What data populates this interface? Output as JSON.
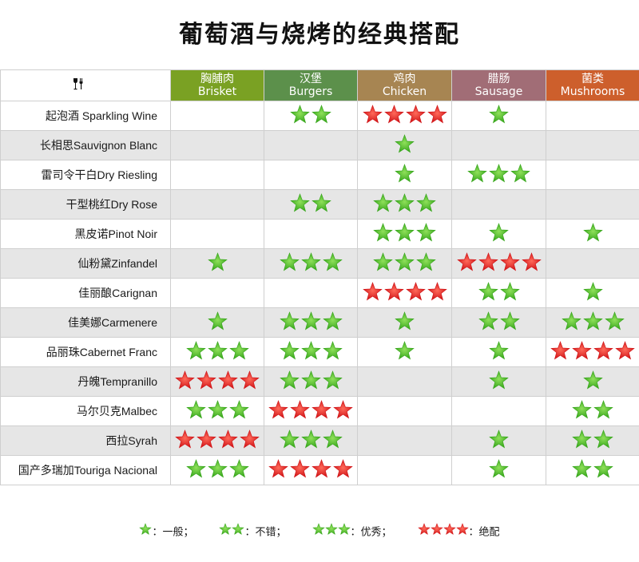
{
  "title": "葡萄酒与烧烤的经典搭配",
  "corner_icon": "wine-glass-fork-icon",
  "colors": {
    "green_star": "#3aa81e",
    "green_star_light": "#8fe05a",
    "red_star": "#d2171a",
    "red_star_light": "#ff6a5a",
    "stripe": "#e6e6e6"
  },
  "columns": [
    {
      "zh": "胸脯肉",
      "en": "Brisket",
      "color": "#7aa123"
    },
    {
      "zh": "汉堡",
      "en": "Burgers",
      "color": "#5c904b"
    },
    {
      "zh": "鸡肉",
      "en": "Chicken",
      "color": "#a78552"
    },
    {
      "zh": "腊肠",
      "en": "Sausage",
      "color": "#a16d76"
    },
    {
      "zh": "菌类",
      "en": "Mushrooms",
      "color": "#cd5f2c"
    }
  ],
  "rows": [
    {
      "wine": "起泡酒 Sparkling Wine",
      "ratings": [
        0,
        2,
        4,
        1,
        0
      ]
    },
    {
      "wine": "长相思Sauvignon Blanc",
      "ratings": [
        0,
        0,
        1,
        0,
        0
      ]
    },
    {
      "wine": "雷司令干白Dry Riesling",
      "ratings": [
        0,
        0,
        1,
        3,
        0
      ]
    },
    {
      "wine": "干型桃红Dry Rose",
      "ratings": [
        0,
        2,
        3,
        0,
        0
      ]
    },
    {
      "wine": "黑皮诺Pinot Noir",
      "ratings": [
        0,
        0,
        3,
        1,
        1
      ]
    },
    {
      "wine": "仙粉黛Zinfandel",
      "ratings": [
        1,
        3,
        3,
        4,
        0
      ]
    },
    {
      "wine": "佳丽酿Carignan",
      "ratings": [
        0,
        0,
        4,
        2,
        1
      ]
    },
    {
      "wine": "佳美娜Carmenere",
      "ratings": [
        1,
        3,
        1,
        2,
        3
      ]
    },
    {
      "wine": "品丽珠Cabernet Franc",
      "ratings": [
        3,
        3,
        1,
        1,
        4
      ]
    },
    {
      "wine": "丹魄Tempranillo",
      "ratings": [
        4,
        3,
        0,
        1,
        1
      ]
    },
    {
      "wine": "马尔贝克Malbec",
      "ratings": [
        3,
        4,
        0,
        0,
        2
      ]
    },
    {
      "wine": "西拉Syrah",
      "ratings": [
        4,
        3,
        0,
        1,
        2
      ]
    },
    {
      "wine": "国产多瑞加Touriga Nacional",
      "ratings": [
        3,
        4,
        0,
        1,
        2
      ]
    }
  ],
  "legend": [
    {
      "stars": 1,
      "label": "：一般；"
    },
    {
      "stars": 2,
      "label": "：不错；"
    },
    {
      "stars": 3,
      "label": "：优秀；"
    },
    {
      "stars": 4,
      "label": "：绝配"
    }
  ]
}
